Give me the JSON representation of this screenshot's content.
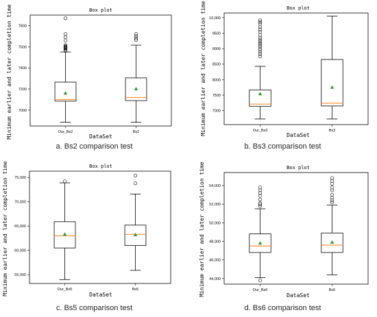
{
  "captions": [
    "a. Bs2 comparison test",
    "b. Bs3 comparison test",
    "c. Bs5 comparison test",
    "d. Bs6 comparison test"
  ],
  "colors": {
    "median": "#ff7f0e",
    "mean": "#2ca02c",
    "box": "#000000"
  },
  "chart_data": [
    {
      "type": "box",
      "title": "Box plot",
      "xlabel": "DataSet",
      "ylabel": "Minimum earlier and later completion time",
      "ylim": [
        6850,
        7900
      ],
      "yticks": [
        7000,
        7200,
        7400,
        7600,
        7800
      ],
      "ytick_labels": [
        "7000",
        "7200",
        "7400",
        "7600",
        "7800"
      ],
      "categories": [
        "Our_Bs2",
        "Bs2"
      ],
      "boxes": [
        {
          "name": "Our_Bs2",
          "whislo": 6885,
          "q1": 7085,
          "median": 7100,
          "q3": 7265,
          "whishi": 7550,
          "mean": 7160,
          "fliers": [
            7560,
            7575,
            7585,
            7590,
            7595,
            7600,
            7605,
            7615,
            7660,
            7690,
            7720,
            7870
          ]
        },
        {
          "name": "Bs2",
          "whislo": 6885,
          "q1": 7090,
          "median": 7120,
          "q3": 7305,
          "whishi": 7615,
          "mean": 7200,
          "fliers": [
            7665,
            7680,
            7700,
            7720
          ]
        }
      ]
    },
    {
      "type": "box",
      "title": "Box plot",
      "xlabel": "DataSet",
      "ylabel": "Minimum earlier and later completion time",
      "ylim": [
        6550,
        10150
      ],
      "yticks": [
        7000,
        7500,
        8000,
        8500,
        9000,
        9500,
        10000
      ],
      "ytick_labels": [
        "7000",
        "7500",
        "8000",
        "8500",
        "9000",
        "9500",
        "10,000"
      ],
      "categories": [
        "Our_Bs3",
        "Bs3"
      ],
      "boxes": [
        {
          "name": "Our_Bs3",
          "whislo": 6730,
          "q1": 7140,
          "median": 7210,
          "q3": 7670,
          "whishi": 8430,
          "mean": 7540,
          "fliers": [
            8750,
            8830,
            8900,
            8980,
            9050,
            9110,
            9170,
            9230,
            9290,
            9350,
            9440,
            9540,
            9620,
            9700,
            9800,
            9860,
            9920
          ]
        },
        {
          "name": "Bs3",
          "whislo": 6730,
          "q1": 7150,
          "median": 7240,
          "q3": 8650,
          "whishi": 10050,
          "mean": 7750,
          "fliers": []
        }
      ]
    },
    {
      "type": "box",
      "title": "Box plot",
      "xlabel": "DataSet",
      "ylabel": "Minimum earlier and later completion time",
      "ylim": [
        53200,
        76300
      ],
      "yticks": [
        55000,
        60000,
        65000,
        70000,
        75000
      ],
      "ytick_labels": [
        "55,000",
        "60,000",
        "65,000",
        "70,000",
        "75,000"
      ],
      "categories": [
        "Our_Bs5",
        "Bs5"
      ],
      "boxes": [
        {
          "name": "Our_Bs5",
          "whislo": 54000,
          "q1": 60500,
          "median": 63000,
          "q3": 65900,
          "whishi": 73900,
          "mean": 63300,
          "fliers": [
            74200
          ]
        },
        {
          "name": "Bs5",
          "whislo": 55900,
          "q1": 61000,
          "median": 63300,
          "q3": 65200,
          "whishi": 71600,
          "mean": 63200,
          "fliers": [
            73800,
            75400
          ]
        }
      ]
    },
    {
      "type": "box",
      "title": "Box plot",
      "xlabel": "DataSet",
      "ylabel": "Minimum earlier and later completion time",
      "ylim": [
        43400,
        55400
      ],
      "yticks": [
        44000,
        46000,
        48000,
        50000,
        52000,
        54000
      ],
      "ytick_labels": [
        "44,000",
        "46,000",
        "48,000",
        "50,000",
        "52,000",
        "54,000"
      ],
      "categories": [
        "Our_Bs6",
        "Bs6"
      ],
      "boxes": [
        {
          "name": "Our_Bs6",
          "whislo": 44100,
          "q1": 46800,
          "median": 47500,
          "q3": 48800,
          "whishi": 51500,
          "mean": 47800,
          "fliers": [
            43800,
            51800,
            52000,
            52100,
            52500,
            52900,
            53200,
            53500,
            53800
          ]
        },
        {
          "name": "Bs6",
          "whislo": 44400,
          "q1": 46800,
          "median": 47600,
          "q3": 48900,
          "whishi": 51900,
          "mean": 47900,
          "fliers": [
            52200,
            52400,
            52700,
            53000,
            53500,
            53800,
            54200,
            54500,
            54800
          ]
        }
      ]
    }
  ]
}
